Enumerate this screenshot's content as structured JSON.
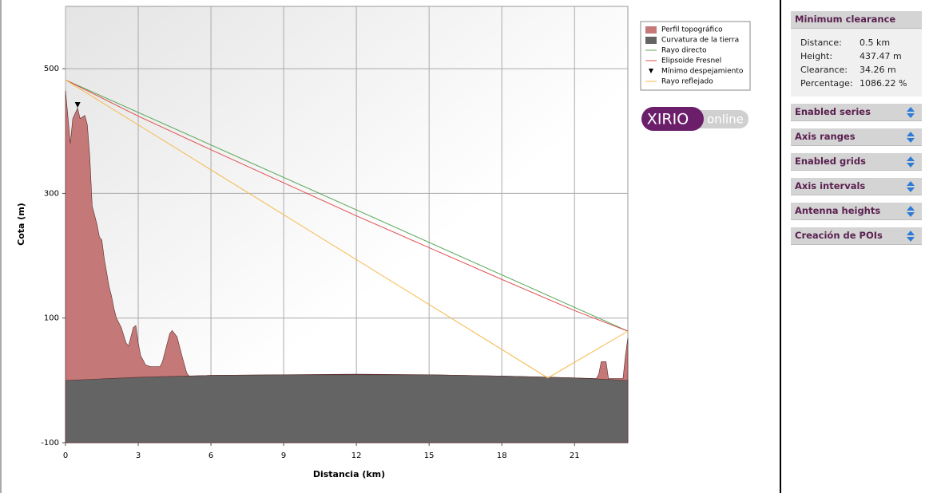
{
  "chart_data": {
    "type": "line",
    "x_label": "Distancia (km)",
    "y_label": "Cota (m)",
    "xlim": [
      0,
      23.2
    ],
    "xticks": [
      0,
      3,
      6,
      9,
      12,
      15,
      18,
      21
    ],
    "ylim": [
      -100,
      600
    ],
    "yticks": [
      -100,
      100,
      300,
      500
    ],
    "grid": true,
    "series": [
      {
        "name": "Perfil topográfico",
        "style": "area",
        "color": "#c47878",
        "x": [
          0,
          0.2,
          0.3,
          0.5,
          0.6,
          0.8,
          0.9,
          1.0,
          1.1,
          1.3,
          1.4,
          1.5,
          1.6,
          1.8,
          1.9,
          2.0,
          2.1,
          2.3,
          2.5,
          2.6,
          2.8,
          2.9,
          3.0,
          3.1,
          3.3,
          3.5,
          3.9,
          4.0,
          4.2,
          4.3,
          4.4,
          4.6,
          4.8,
          5.0,
          5.1,
          6,
          9,
          12,
          15,
          18,
          20,
          21.9,
          22.0,
          22.1,
          22.3,
          22.4,
          23.0,
          23.1,
          23.2
        ],
        "values": [
          465,
          380,
          420,
          437,
          420,
          425,
          410,
          360,
          280,
          250,
          230,
          225,
          195,
          150,
          135,
          115,
          100,
          85,
          60,
          55,
          85,
          88,
          60,
          40,
          25,
          22,
          22,
          30,
          60,
          75,
          80,
          70,
          40,
          12,
          7,
          8,
          9,
          10,
          9,
          7,
          5,
          3,
          10,
          30,
          30,
          3,
          3,
          40,
          68
        ]
      },
      {
        "name": "Curvatura de la tierra",
        "style": "area",
        "color": "#646464",
        "x": [
          0,
          3,
          6,
          9,
          12,
          15,
          18,
          21,
          23.2
        ],
        "values": [
          0,
          5,
          8,
          9,
          9,
          9,
          7,
          4,
          0
        ]
      },
      {
        "name": "Rayo directo",
        "style": "line",
        "color": "#5aa85a",
        "x": [
          0,
          23.2
        ],
        "values": [
          482,
          79
        ]
      },
      {
        "name": "Elipsoide Fresnel",
        "style": "line",
        "color": "#e05050",
        "x": [
          0,
          3,
          6,
          9,
          12,
          15,
          18,
          21,
          23.2
        ],
        "values": [
          482,
          424,
          370,
          317,
          264,
          213,
          162,
          112,
          79
        ]
      },
      {
        "name": "Mínimo despejamiento",
        "style": "marker",
        "color": "#000000",
        "x": [
          0.5
        ],
        "values": [
          442
        ]
      },
      {
        "name": "Rayo reflejado",
        "style": "line",
        "color": "#f5b94a",
        "x": [
          0,
          19.9,
          23.2
        ],
        "values": [
          482,
          4,
          79
        ]
      }
    ]
  },
  "logo": {
    "brand": "XIRIO",
    "suffix": "online"
  },
  "panel": {
    "clearance_title": "Minimum clearance",
    "rows": [
      [
        "Distance:",
        "0.5 km"
      ],
      [
        "Height:",
        "437.47 m"
      ],
      [
        "Clearance:",
        "34.26 m"
      ],
      [
        "Percentage:",
        "1086.22 %"
      ]
    ],
    "sections": [
      "Enabled series",
      "Axis ranges",
      "Enabled grids",
      "Axis intervals",
      "Antenna heights",
      "Creación de POIs"
    ]
  }
}
